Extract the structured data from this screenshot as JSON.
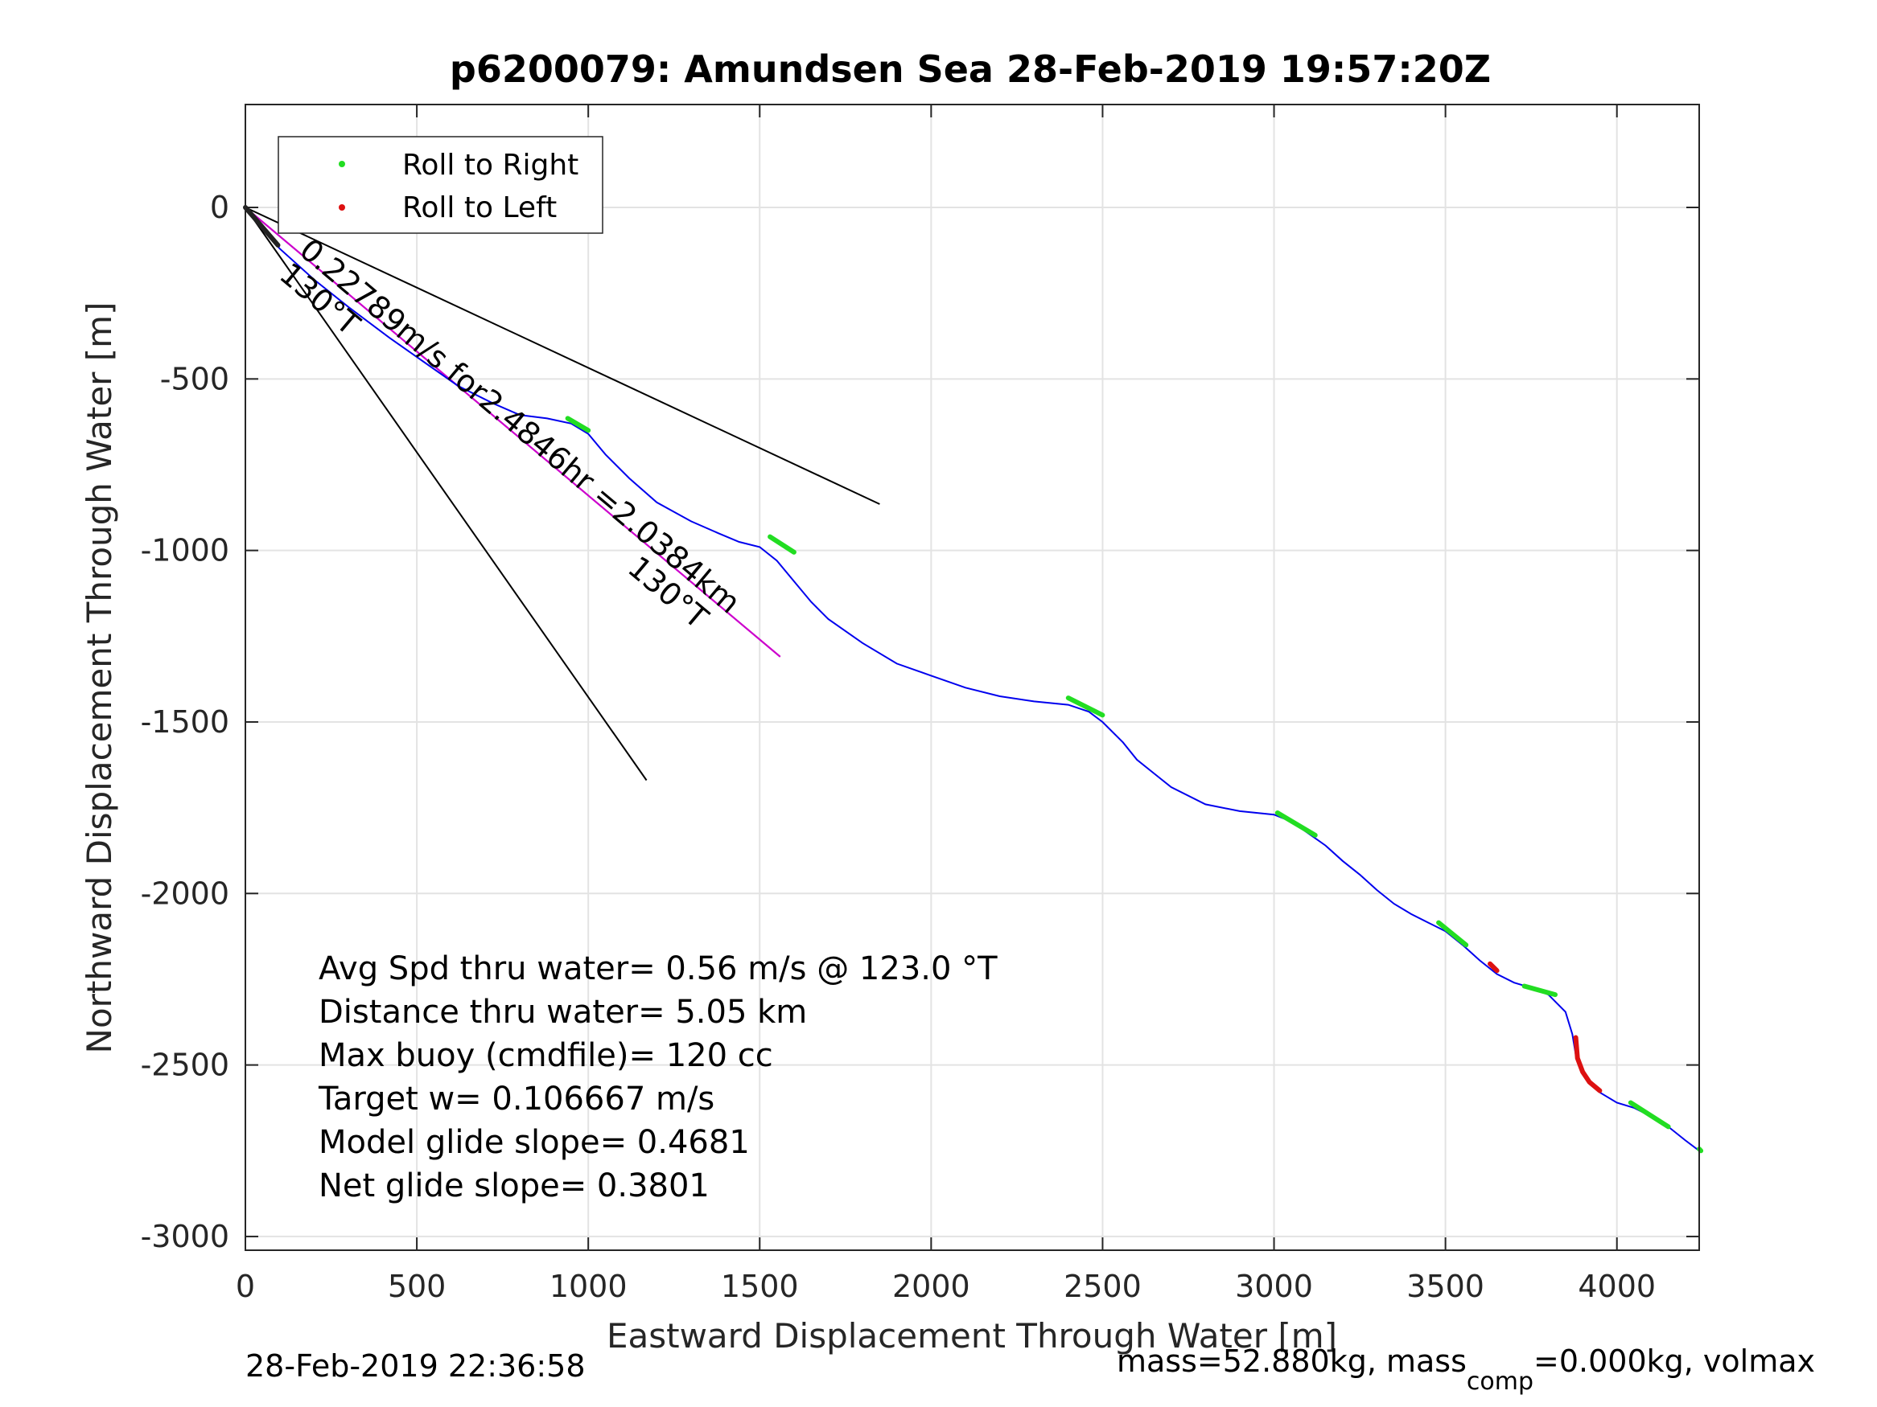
{
  "chart_data": {
    "type": "line",
    "title": "p6200079: Amundsen Sea 28-Feb-2019 19:57:20Z",
    "xlabel": "Eastward Displacement Through Water [m]",
    "ylabel": "Northward Displacement Through Water [m]",
    "xlim": [
      0,
      4240
    ],
    "ylim": [
      -3040,
      300
    ],
    "xticks": [
      0,
      500,
      1000,
      1500,
      2000,
      2500,
      3000,
      3500,
      4000
    ],
    "yticks": [
      0,
      -500,
      -1000,
      -1500,
      -2000,
      -2500,
      -3000
    ],
    "xtick_labels": [
      "0",
      "500",
      "1000",
      "1500",
      "2000",
      "2500",
      "3000",
      "3500",
      "4000"
    ],
    "ytick_labels": [
      "0",
      "-500",
      "-1000",
      "-1500",
      "-2000",
      "-2500",
      "-3000"
    ],
    "grid": true,
    "legend_position": "top-left",
    "legend": [
      {
        "label": "Roll to Right",
        "color": "#22dd22"
      },
      {
        "label": "Roll to Left",
        "color": "#dd1111"
      }
    ],
    "track": {
      "color": "#0000ee",
      "x": [
        0,
        30,
        100,
        200,
        300,
        420,
        520,
        620,
        720,
        800,
        880,
        950,
        1000,
        1050,
        1120,
        1200,
        1300,
        1380,
        1440,
        1500,
        1550,
        1600,
        1650,
        1700,
        1800,
        1900,
        2000,
        2100,
        2200,
        2300,
        2400,
        2460,
        2500,
        2560,
        2600,
        2650,
        2700,
        2800,
        2900,
        3000,
        3050,
        3100,
        3150,
        3200,
        3250,
        3300,
        3350,
        3400,
        3450,
        3500,
        3550,
        3600,
        3650,
        3700,
        3750,
        3800,
        3850,
        3870,
        3880,
        3900,
        3920,
        3950,
        4000,
        4050,
        4100,
        4150,
        4200,
        4240
      ],
      "y": [
        0,
        -40,
        -120,
        -210,
        -290,
        -380,
        -450,
        -520,
        -570,
        -605,
        -615,
        -630,
        -660,
        -720,
        -790,
        -860,
        -915,
        -950,
        -975,
        -990,
        -1030,
        -1090,
        -1150,
        -1200,
        -1270,
        -1330,
        -1365,
        -1400,
        -1425,
        -1440,
        -1450,
        -1470,
        -1500,
        -1560,
        -1610,
        -1650,
        -1690,
        -1740,
        -1760,
        -1770,
        -1790,
        -1825,
        -1860,
        -1905,
        -1945,
        -1990,
        -2030,
        -2060,
        -2085,
        -2110,
        -2150,
        -2195,
        -2235,
        -2260,
        -2275,
        -2295,
        -2345,
        -2410,
        -2470,
        -2520,
        -2555,
        -2580,
        -2610,
        -2625,
        -2650,
        -2680,
        -2720,
        -2750
      ]
    },
    "roll_right_segments": [
      {
        "x": [
          940,
          1000
        ],
        "y": [
          -615,
          -650
        ]
      },
      {
        "x": [
          1530,
          1600
        ],
        "y": [
          -960,
          -1005
        ]
      },
      {
        "x": [
          2400,
          2500
        ],
        "y": [
          -1430,
          -1480
        ]
      },
      {
        "x": [
          3010,
          3120
        ],
        "y": [
          -1765,
          -1830
        ]
      },
      {
        "x": [
          3480,
          3560
        ],
        "y": [
          -2085,
          -2150
        ]
      },
      {
        "x": [
          3730,
          3820
        ],
        "y": [
          -2270,
          -2295
        ]
      },
      {
        "x": [
          4040,
          4150
        ],
        "y": [
          -2610,
          -2680
        ]
      },
      {
        "x": [
          4240,
          4245
        ],
        "y": [
          -2745,
          -2750
        ]
      }
    ],
    "roll_left_segments": [
      {
        "x": [
          3630,
          3650
        ],
        "y": [
          -2205,
          -2225
        ]
      },
      {
        "x": [
          3880,
          3885,
          3900,
          3920,
          3950
        ],
        "y": [
          -2420,
          -2480,
          -2520,
          -2550,
          -2575
        ]
      }
    ],
    "heading_lines": [
      {
        "x": [
          0,
          1850
        ],
        "y": [
          0,
          -865
        ]
      },
      {
        "x": [
          0,
          1170
        ],
        "y": [
          0,
          -1670
        ]
      }
    ],
    "magenta_line": {
      "x": [
        0,
        1560
      ],
      "y": [
        0,
        -1310
      ]
    },
    "label_speed": "0.22789m/s for2.4846hr =2.0384km",
    "label_heading_1": "130°T",
    "label_heading_2": "130°T",
    "stats": [
      "Avg Spd thru water=  0.56 m/s @ 123.0 °T",
      "Distance thru water=  5.05 km",
      "Max buoy (cmdfile)= 120 cc",
      "Target w= 0.106667 m/s",
      "Model glide slope= 0.4681",
      "Net glide slope= 0.3801"
    ],
    "footer_left": "28-Feb-2019 22:36:58",
    "footer_right_a": "mass=52.880kg, mass",
    "footer_right_sub": "comp",
    "footer_right_b": "=0.000kg, volmax"
  }
}
